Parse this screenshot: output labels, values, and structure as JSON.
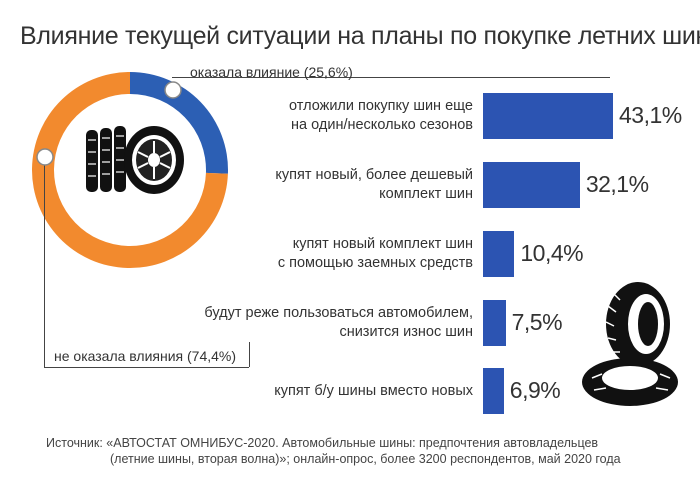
{
  "title": "Влияние текущей ситуации на планы по покупке летних шин",
  "colors": {
    "bar": "#2c54b2",
    "donut_affected": "#2c5fb4",
    "donut_not_affected": "#f28a2e",
    "text": "#333333"
  },
  "donut": {
    "affected_label": "оказала влияние (25,6%)",
    "not_affected_label": "не оказала влияния (74,4%)",
    "icon": "tires-stack-icon"
  },
  "chart_data": [
    {
      "type": "pie",
      "categories": [
        "оказала влияние",
        "не оказала влияния"
      ],
      "values": [
        25.6,
        74.4
      ]
    },
    {
      "type": "bar",
      "orientation": "horizontal",
      "categories": [
        [
          "отложили покупку шин еще",
          "на один/несколько сезонов"
        ],
        [
          "купят новый, более дешевый",
          "комплект шин"
        ],
        [
          "купят новый комплект шин",
          "с помощью заемных средств"
        ],
        [
          "будут реже пользоваться автомобилем,",
          "снизится износ шин"
        ],
        [
          "купят б/у шины вместо новых"
        ]
      ],
      "values": [
        43.1,
        32.1,
        10.4,
        7.5,
        6.9
      ],
      "value_labels": [
        "43,1%",
        "32,1%",
        "10,4%",
        "7,5%",
        "6,9%"
      ]
    }
  ],
  "decor_icon": "tire-stack-icon",
  "source": {
    "line1": "Источник: «АВТОСТАТ ОМНИБУС-2020. Автомобильные шины: предпочтения автовладельцев",
    "line2": "(летние шины, вторая волна)»; онлайн-опрос, более 3200 респондентов, май 2020 года"
  }
}
